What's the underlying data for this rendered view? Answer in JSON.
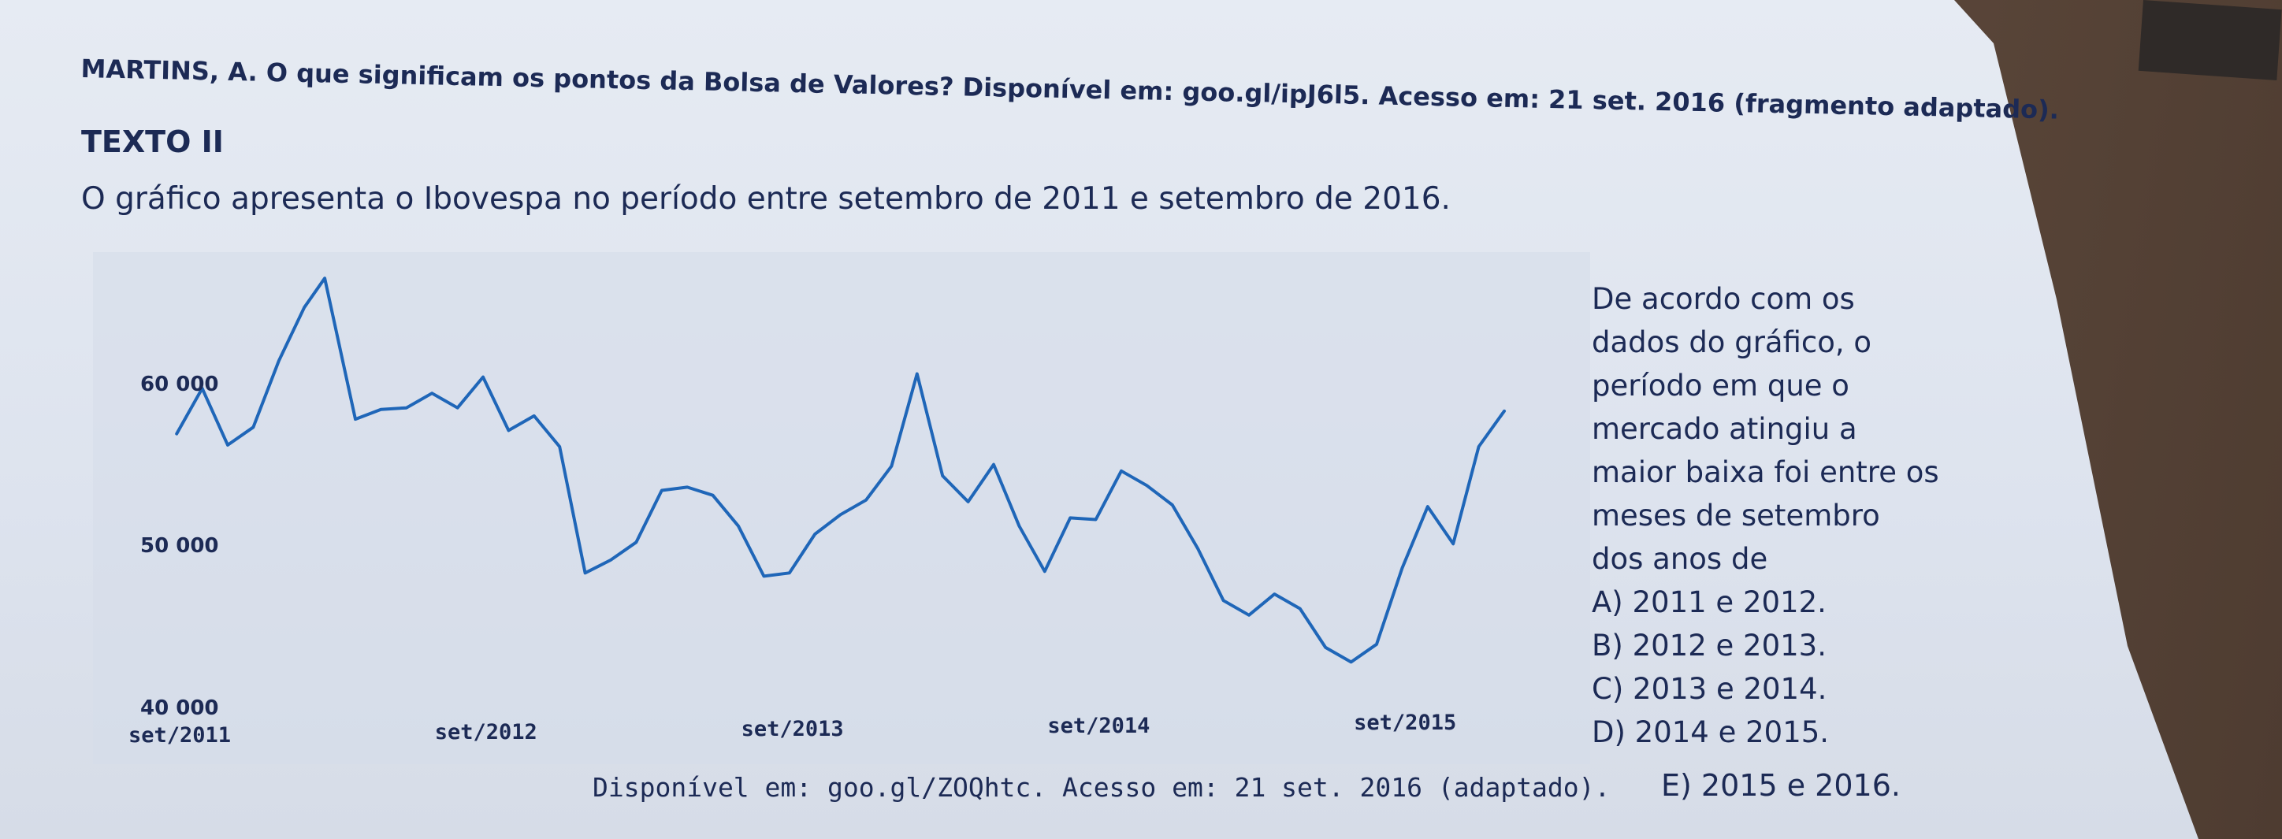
{
  "reference": "MARTINS, A. O que significam os pontos da Bolsa de Valores? Disponível em: goo.gl/ipJ6l5. Acesso em: 21 set. 2016 (fragmento adaptado).",
  "section_title": "TEXTO II",
  "intro": "O gráfico apresenta o Ibovespa no período entre setembro de 2011 e setembro de 2016.",
  "question": {
    "lines": [
      "De acordo com os",
      "dados do gráfico, o",
      "período em que o",
      "mercado atingiu a",
      "maior baixa foi entre os",
      "meses de setembro",
      "dos anos de"
    ],
    "options": [
      "A) 2011 e 2012.",
      "B) 2012 e 2013.",
      "C) 2013 e 2014.",
      "D) 2014 e 2015.",
      "E) 2015 e 2016."
    ]
  },
  "source": "Disponível em: goo.gl/ZOQhtc. Acesso em: 21 set. 2016 (adaptado).",
  "colors": {
    "line": "#1f66b8",
    "text": "#1c2a55"
  },
  "chart_data": {
    "type": "line",
    "title": "",
    "xlabel": "",
    "ylabel": "",
    "y_ticks": [
      "60 000",
      "50 000",
      "40 000"
    ],
    "y_tick_values": [
      60000,
      50000,
      40000
    ],
    "x_ticks": [
      "set/2011",
      "set/2012",
      "set/2013",
      "set/2014",
      "set/2015"
    ],
    "x_tick_positions": [
      0,
      12,
      24,
      36,
      48
    ],
    "ylim": [
      40000,
      67000
    ],
    "grid": false,
    "series": [
      {
        "name": "",
        "points": [
          [
            0.5,
            57000
          ],
          [
            1.5,
            59800
          ],
          [
            2.5,
            56300
          ],
          [
            3.5,
            57400
          ],
          [
            4.5,
            61500
          ],
          [
            5.5,
            64800
          ],
          [
            6.3,
            66600
          ],
          [
            7.5,
            57900
          ],
          [
            8.5,
            58500
          ],
          [
            9.5,
            58600
          ],
          [
            10.5,
            59500
          ],
          [
            11.5,
            58600
          ],
          [
            12.5,
            60500
          ],
          [
            13.5,
            57200
          ],
          [
            14.5,
            58100
          ],
          [
            15.5,
            56200
          ],
          [
            16.5,
            48400
          ],
          [
            17.5,
            49200
          ],
          [
            18.5,
            50300
          ],
          [
            19.5,
            53500
          ],
          [
            20.5,
            53700
          ],
          [
            21.5,
            53200
          ],
          [
            22.5,
            51300
          ],
          [
            23.5,
            48200
          ],
          [
            24.5,
            48400
          ],
          [
            25.5,
            50800
          ],
          [
            26.5,
            52000
          ],
          [
            27.5,
            52900
          ],
          [
            28.5,
            55000
          ],
          [
            29.5,
            60700
          ],
          [
            30.5,
            54400
          ],
          [
            31.5,
            52800
          ],
          [
            32.5,
            55100
          ],
          [
            33.5,
            51300
          ],
          [
            34.5,
            48500
          ],
          [
            35.5,
            51800
          ],
          [
            36.5,
            51700
          ],
          [
            37.5,
            54700
          ],
          [
            38.5,
            53800
          ],
          [
            39.5,
            52600
          ],
          [
            40.5,
            49900
          ],
          [
            41.5,
            46700
          ],
          [
            42.5,
            45800
          ],
          [
            43.5,
            47100
          ],
          [
            44.5,
            46200
          ],
          [
            45.5,
            43800
          ],
          [
            46.5,
            42900
          ],
          [
            47.5,
            44000
          ],
          [
            48.5,
            48700
          ],
          [
            49.5,
            52500
          ],
          [
            50.5,
            50200
          ],
          [
            51.5,
            56200
          ],
          [
            52.5,
            58400
          ]
        ]
      }
    ]
  }
}
